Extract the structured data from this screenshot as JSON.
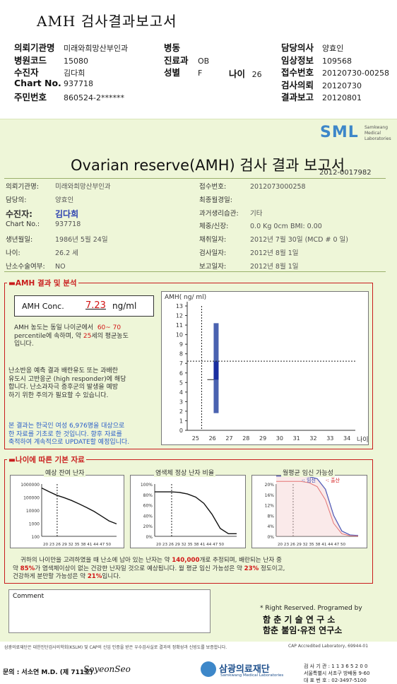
{
  "top_title": "AMH 검사결과보고서",
  "header": {
    "left": [
      {
        "label": "의뢰기관명",
        "value": "미래와희망산부인과"
      },
      {
        "label": "병원코드",
        "value": "15080"
      },
      {
        "label": "수진자",
        "value": "김다희"
      },
      {
        "label": "Chart No.",
        "value": "937718"
      },
      {
        "label": "주민번호",
        "value": "860524-2******"
      }
    ],
    "mid": [
      {
        "label": "병동",
        "value": ""
      },
      {
        "label": "진료과",
        "value": "OB"
      },
      {
        "label": "성별",
        "value": "F"
      }
    ],
    "age": {
      "label": "나이",
      "value": "26"
    },
    "right": [
      {
        "label": "담당의사",
        "value": "양효인"
      },
      {
        "label": "임상정보",
        "value": "109568"
      },
      {
        "label": "접수번호",
        "value": "20120730-00258"
      },
      {
        "label": "검사의뢰",
        "value": "20120730"
      },
      {
        "label": "결과보고",
        "value": "20120801"
      }
    ]
  },
  "report": {
    "logo": "SML",
    "logo_sub": "Samkwang Medical Laboratories",
    "title": "Ovarian reserve(AMH) 검사 결과 보고서",
    "report_no": "2012-0017982",
    "info_left": [
      {
        "label": "의뢰기관명:",
        "value": "미래와희망산부인과"
      },
      {
        "label": "담당의:",
        "value": "양효인"
      },
      {
        "label": "수진자:",
        "value": "김다희"
      },
      {
        "label": "Chart No.:",
        "value": "937718"
      },
      {
        "label": "생년월일:",
        "value": "1986년 5월 24일"
      },
      {
        "label": "나이:",
        "value": "26.2 세"
      },
      {
        "label": "난소수술여부:",
        "value": "NO"
      }
    ],
    "info_right": [
      {
        "label": "접수번호:",
        "value": "2012073000258"
      },
      {
        "label": "최종월경일:",
        "value": ""
      },
      {
        "label": "과거생리습관:",
        "value": "기타"
      },
      {
        "label": "체중/신장:",
        "value": "0.0 Kg        0cm    BMI:    0.00"
      },
      {
        "label": "채취일자:",
        "value": "2012년 7월 30일   (MCD # 0 일)"
      },
      {
        "label": "검사일자:",
        "value": "2012년 8월 1일"
      },
      {
        "label": "보고일자:",
        "value": "2012년 8월 1일"
      }
    ],
    "amh_section_label": "AMH 결과 및 분석",
    "amh_conc_label": "AMH Conc.",
    "amh_conc_value": "7.23",
    "amh_conc_unit": "ng/ml",
    "para1_a": "AMH 농도는 동일 나이군에서",
    "para1_range": "60~ 70",
    "para1_b": "percentile에 속하며, 약",
    "para1_age": "25",
    "para1_c": "세의 평균농도",
    "para1_d": "입니다.",
    "para2": [
      "난소반응 예측 결과 배란유도 또는 과배란",
      "유도시 고반응군 (high responder)에 해당",
      "합니다. 난소과자극 증후군의 발생을 예방",
      "하기 위한 주의가 필요할 수 있습니다."
    ],
    "para3": [
      "본 결과는 한국인 여성 6,976명을 대상으로",
      "한 자료를 기초로 한 것입니다. 향후 자료를",
      "축적하여 계속적으로 UPDATE할 예정입니다."
    ],
    "age_section_label": "나이에 따른 기본 자료",
    "chart_titles": [
      "예상 잔여 난자",
      "염색체 정상 난자 비율",
      "월평균 임신 가능성"
    ],
    "legend_main": "임신",
    "legend_sub": "출산",
    "summary_l1_a": "귀하의 나이만을 고려하였을 때 난소에 남아 있는 난자는 약",
    "summary_l1_val": "140,000",
    "summary_l1_b": "개로 추정되며, 배란되는 난자 중",
    "summary_l2_a": "약",
    "summary_l2_val": "85%",
    "summary_l2_b": "가 염색체이상이 없는 건강한 난자일 것으로 예상됩니다. 월 평균 임신 가능성은 약",
    "summary_l2_val2": "23%",
    "summary_l2_c": "정도이고,",
    "summary_l3_a": "건강하게 분만할 가능성은 약",
    "summary_l3_val": "21%",
    "summary_l3_b": "입니다.",
    "comment_label": "Comment",
    "rights": "* Right Reserved.  Programed by",
    "org1": "함 춘  기 술  연 구 소",
    "org2": "함춘 불임·유전 연구소",
    "footer_small": "삼광의료재단은 대한진단검사의학회(KSLM) 및 CAP의 신임 인증을 받은 우수검사실로 결과의 정확성과 신빙도를 보증합니다.",
    "cap": "CAP  Accredited  Laboratory,  69944-01"
  },
  "footer": {
    "signer": "문의 : 서소연 M.D. (제 711호)",
    "signature": "SoyeonSeo",
    "foundation": "삼광의료재단",
    "foundation_en": "Samkwang Medical Laboratories",
    "contact_1": "검 사 기 관 : 1 1 3 6 5 2 0 0",
    "contact_2": "서울특별시 서초구 방배동 9-60",
    "contact_3": "대 표 번 호 : 02-3497-5100"
  },
  "chart_data": [
    {
      "type": "bar",
      "title": "",
      "ylabel": "AMH( ng/ ml)",
      "xlabel": "나이",
      "categories": [
        "25",
        "26",
        "27",
        "28",
        "29",
        "30",
        "31",
        "32",
        "33",
        "34"
      ],
      "ylim": [
        0,
        13
      ],
      "range_low": 1.8,
      "range_high": 11.2,
      "highlight_low": 5.3,
      "highlight_high": 7.2,
      "patient_age": 26.2,
      "patient_value": 7.23
    },
    {
      "type": "line",
      "title": "예상 잔여 난자",
      "x": [
        20,
        23,
        26,
        29,
        32,
        35,
        38,
        41,
        44,
        47,
        50
      ],
      "y": [
        500000,
        260000,
        140000,
        90000,
        55000,
        30000,
        16000,
        8000,
        3500,
        1500,
        900
      ],
      "yticks": [
        "1000000",
        "100000",
        "10000",
        "1000",
        "100"
      ],
      "log_scale": true,
      "xticks": "20 23 26 29 32 35 38 41 44 47 50"
    },
    {
      "type": "line",
      "title": "염색체 정상 난자 비율",
      "x": [
        20,
        23,
        26,
        29,
        32,
        35,
        38,
        41,
        44,
        47,
        50
      ],
      "y": [
        85,
        85,
        85,
        84,
        81,
        75,
        63,
        42,
        15,
        5,
        5
      ],
      "yticks": [
        "100%",
        "80%",
        "60%",
        "40%",
        "20%",
        "0%"
      ],
      "ylim": [
        0,
        100
      ],
      "xticks": "20 23 26 29 32 35 38 41 44 47 50"
    },
    {
      "type": "line",
      "title": "월평균 임신 가능성",
      "x": [
        20,
        23,
        26,
        29,
        32,
        35,
        38,
        41,
        44,
        47,
        50
      ],
      "series": [
        {
          "name": "임신",
          "values": [
            23,
            23,
            23,
            23,
            22.8,
            22,
            18,
            8,
            2,
            0.5,
            0.3
          ]
        },
        {
          "name": "출산",
          "values": [
            21,
            21,
            21,
            21,
            20.5,
            19,
            14,
            5,
            1,
            0.2,
            0.1
          ]
        }
      ],
      "yticks": [
        "20%",
        "16%",
        "12%",
        "8%",
        "4%",
        "0%"
      ],
      "ylim": [
        0,
        23
      ],
      "xticks": "20 23 26 29 32 35 38 41 44 47 50"
    }
  ],
  "colors": {
    "accent_red": "#c91c1c",
    "bar_blue": "#4a62b0",
    "bar_highlight": "#1a2ea0",
    "logo_blue": "#3d87c9",
    "report_bg": "#eef6d8"
  }
}
